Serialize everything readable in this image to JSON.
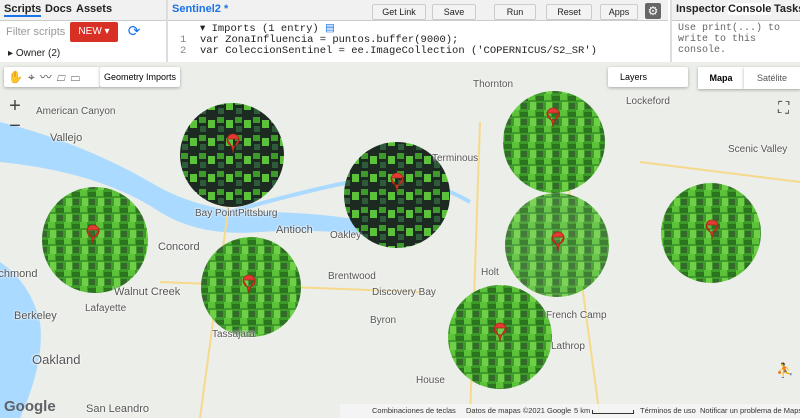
{
  "left_panel": {
    "tabs": [
      "Scripts",
      "Docs",
      "Assets"
    ],
    "filter_placeholder": "Filter scripts",
    "new_button": "NEW",
    "tree_item": "Owner (2)"
  },
  "editor": {
    "tab_title": "Sentinel2 *",
    "buttons": [
      "Get Link",
      "Save",
      "Run",
      "Reset",
      "Apps"
    ],
    "imports": "Imports (1 entry)",
    "lines": [
      {
        "number": 1,
        "code": "var ZonaInfluencia = puntos.buffer(9000);"
      },
      {
        "number": 2,
        "code": "var ColeccionSentinel = ee.ImageCollection ('COPERNICUS/S2_SR')"
      }
    ]
  },
  "right_panel": {
    "tabs": [
      "Inspector",
      "Console",
      "Tasks"
    ],
    "console_text": "Use print(...) to write to this console."
  },
  "map": {
    "geometry_imports": "Geometry Imports",
    "layers": "Layers",
    "map_types": [
      "Mapa",
      "Satélite"
    ],
    "zoom": [
      "+",
      "−"
    ],
    "places": [
      "American Canyon",
      "Vallejo",
      "Concord",
      "Bay Point",
      "Pittsburg",
      "Antioch",
      "Oakley",
      "Brentwood",
      "Discovery Bay",
      "Byron",
      "Walnut Creek",
      "Lafayette",
      "Berkeley",
      "Oakland",
      "Richmond",
      "San Leandro",
      "Tassajara",
      "Holt",
      "Terminous",
      "Thornton",
      "Lockeford",
      "Lathrop",
      "French Camp",
      "Scenic Valley",
      "House"
    ],
    "footer": [
      "Google",
      "Combinaciones de teclas",
      "Datos de mapas ©2021 Google",
      "5 km",
      "Términos de uso",
      "Notificar un problema de Maps"
    ]
  }
}
